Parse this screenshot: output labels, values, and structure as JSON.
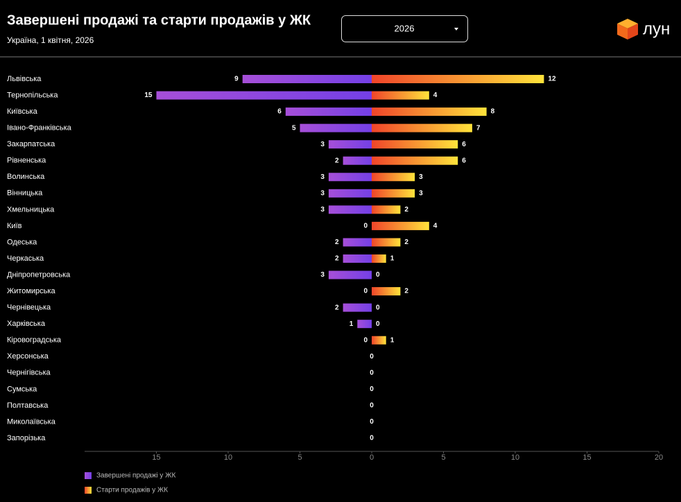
{
  "chart_data": {
    "type": "diverging-bar",
    "title": "Завершені продажі та старти продажів у ЖК",
    "subtitle": "Україна, 1 квітня, 2026",
    "filter": "2026",
    "logo": "лун",
    "categories": [
      "Львівська",
      "Тернопільська",
      "Київська",
      "Івано-Франківська",
      "Закарпатська",
      "Рівненська",
      "Волинська",
      "Вінницька",
      "Хмельницька",
      "Київ",
      "Одеська",
      "Черкаська",
      "Дніпропетровська",
      "Житомирська",
      "Чернівецька",
      "Харківська",
      "Кіровоградська",
      "Херсонська",
      "Чернігівська",
      "Сумська",
      "Полтавська",
      "Миколаївська",
      "Запорізька"
    ],
    "series": [
      {
        "name": "Завершені продажі у ЖК",
        "color": "#8a44dc",
        "gradient": [
          "#a64fd8",
          "#7440e6"
        ],
        "values": [
          -9,
          -15,
          -6,
          -5,
          -3,
          -2,
          -3,
          -3,
          -3,
          0,
          -2,
          -2,
          -3,
          0,
          -2,
          -1,
          0,
          0,
          0,
          0,
          0,
          0,
          0
        ],
        "value_labels": [
          "9",
          "15",
          "6",
          "5",
          "3",
          "2",
          "3",
          "3",
          "3",
          "0",
          "2",
          "2",
          "3",
          "0",
          "2",
          "1",
          "0",
          "0",
          "0",
          "0",
          "0",
          "0",
          "0"
        ]
      },
      {
        "name": "Старти продажів у ЖК",
        "color": "#f7872e",
        "gradient": [
          "#f0442a",
          "#ffe33b"
        ],
        "values": [
          12,
          4,
          8,
          7,
          6,
          6,
          3,
          3,
          2,
          4,
          2,
          1,
          0,
          2,
          0,
          0,
          1,
          0,
          0,
          0,
          0,
          0,
          0
        ],
        "value_labels": [
          "12",
          "4",
          "8",
          "7",
          "6",
          "6",
          "3",
          "3",
          "2",
          "4",
          "2",
          "1",
          "0",
          "2",
          "0",
          "0",
          "1",
          null,
          null,
          null,
          null,
          null,
          null
        ]
      }
    ],
    "xlim": [
      -20,
      20
    ],
    "xticks": [
      {
        "value": -15,
        "label": "15"
      },
      {
        "value": -10,
        "label": "10"
      },
      {
        "value": -5,
        "label": "5"
      },
      0,
      5,
      10,
      15,
      20
    ],
    "grid": false
  }
}
